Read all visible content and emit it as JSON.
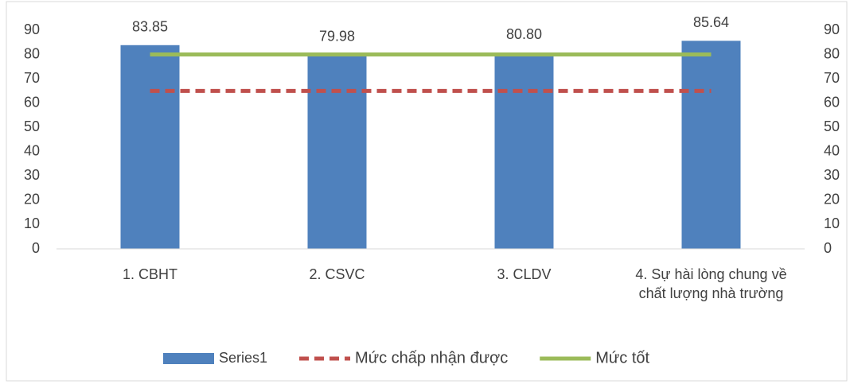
{
  "chart_data": {
    "type": "bar",
    "categories": [
      "1. CBHT",
      "2. CSVC",
      "3. CLDV",
      "4. Sự hài lòng chung về chất lượng nhà trường"
    ],
    "series": [
      {
        "name": "Series1",
        "type": "bar",
        "color": "#4f81bd",
        "values": [
          83.85,
          79.98,
          80.8,
          85.64
        ],
        "value_labels": [
          "83.85",
          "79.98",
          "80.80",
          "85.64"
        ]
      },
      {
        "name": "Mức chấp nhận được",
        "type": "line",
        "dash": true,
        "color": "#c0504d",
        "values": [
          65,
          65,
          65,
          65
        ]
      },
      {
        "name": "Mức tốt",
        "type": "line",
        "dash": false,
        "color": "#9bbb59",
        "values": [
          80,
          80,
          80,
          80
        ]
      }
    ],
    "ylim": [
      0,
      90
    ],
    "yticks": [
      0,
      10,
      20,
      30,
      40,
      50,
      60,
      70,
      80,
      90
    ],
    "y2lim": [
      0,
      90
    ],
    "y2ticks": [
      0,
      10,
      20,
      30,
      40,
      50,
      60,
      70,
      80,
      90
    ],
    "grid": false,
    "legend": "bottom"
  }
}
